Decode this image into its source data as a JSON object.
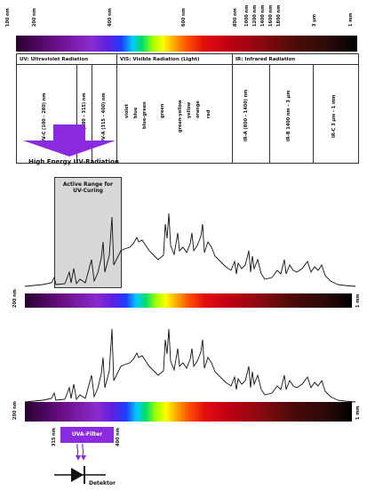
{
  "top_ticks": [
    {
      "label": "100 nm"
    },
    {
      "label": "200 nm"
    },
    {
      "label": "400 nm"
    },
    {
      "label": "600 nm"
    },
    {
      "label": "800 nm"
    },
    {
      "label": "1000 nm"
    },
    {
      "label": "1200 nm"
    },
    {
      "label": "1400 nm"
    },
    {
      "label": "1600 nm"
    },
    {
      "label": "1800 nm"
    },
    {
      "label": "3 µm"
    },
    {
      "label": "1 mm"
    }
  ],
  "table": {
    "uv_header": "UV: Ultraviolet Radiation",
    "vis_header": "VIS: Visible Radiation (Light)",
    "ir_header": "IR: Infrared Radiation",
    "uvc": "UV-C (100 - 280) nm",
    "uvb": "UV-B (280 - 315) nm",
    "uva": "UV-A (315 - 400) nm",
    "visible_colors": [
      "violet",
      "blue",
      "blue-green",
      "green",
      "green-yellow",
      "yellow",
      "orange",
      "red"
    ],
    "ira": "IR-A (800 - 1400) nm",
    "irb": "IR-B 1400 nm - 3 µm",
    "irc": "IR-C 3 µm - 1 mm"
  },
  "arrow_label": "High Energy UV-Radiation",
  "active_range": {
    "line1": "Active Range for",
    "line2": "UV-Curing"
  },
  "spectrum1": {
    "left": "200 nm",
    "right": "1 mm"
  },
  "spectrum2": {
    "left": "200 nm",
    "right": "1 mm"
  },
  "filter": {
    "label": "UVA-Filter",
    "left": "315 nm",
    "right": "400 nm"
  },
  "detector_label": "Detektor",
  "colors": {
    "purple": "#8a2be2",
    "box": "#d8d8d8"
  }
}
